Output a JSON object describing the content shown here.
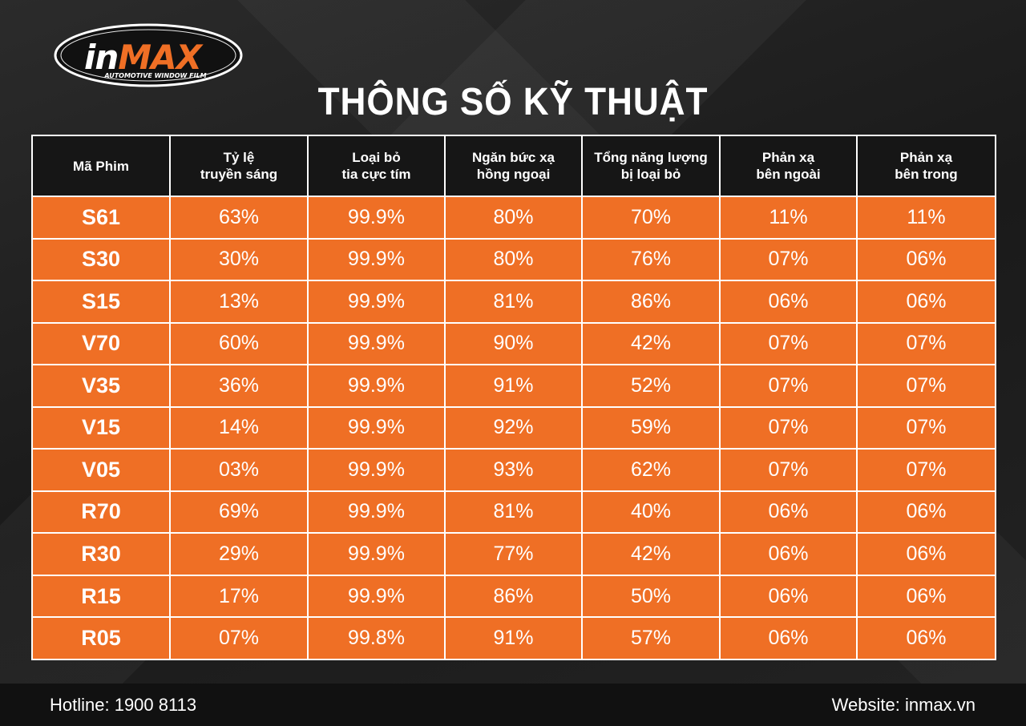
{
  "logo": {
    "brand": "inMAX",
    "tagline": "AUTOMOTIVE WINDOW FILM"
  },
  "title": "THÔNG SỐ KỸ THUẬT",
  "table": {
    "headers": [
      "Mã Phim",
      "Tỷ lệ\ntruyền sáng",
      "Loại bỏ\ntia cực tím",
      "Ngăn bức xạ\nhồng ngoại",
      "Tổng năng lượng\nbị loại bỏ",
      "Phản xạ\nbên ngoài",
      "Phản xạ\nbên trong"
    ],
    "rows": [
      [
        "S61",
        "63%",
        "99.9%",
        "80%",
        "70%",
        "11%",
        "11%"
      ],
      [
        "S30",
        "30%",
        "99.9%",
        "80%",
        "76%",
        "07%",
        "06%"
      ],
      [
        "S15",
        "13%",
        "99.9%",
        "81%",
        "86%",
        "06%",
        "06%"
      ],
      [
        "V70",
        "60%",
        "99.9%",
        "90%",
        "42%",
        "07%",
        "07%"
      ],
      [
        "V35",
        "36%",
        "99.9%",
        "91%",
        "52%",
        "07%",
        "07%"
      ],
      [
        "V15",
        "14%",
        "99.9%",
        "92%",
        "59%",
        "07%",
        "07%"
      ],
      [
        "V05",
        "03%",
        "99.9%",
        "93%",
        "62%",
        "07%",
        "07%"
      ],
      [
        "R70",
        "69%",
        "99.9%",
        "81%",
        "40%",
        "06%",
        "06%"
      ],
      [
        "R30",
        "29%",
        "99.9%",
        "77%",
        "42%",
        "06%",
        "06%"
      ],
      [
        "R15",
        "17%",
        "99.9%",
        "86%",
        "50%",
        "06%",
        "06%"
      ],
      [
        "R05",
        "07%",
        "99.8%",
        "91%",
        "57%",
        "06%",
        "06%"
      ]
    ]
  },
  "footer": {
    "hotline": "Hotline: 1900 8113",
    "website": "Website: inmax.vn"
  },
  "colors": {
    "accent": "#ef6f25",
    "header_bg": "#161616",
    "background": "#1b1b1b",
    "text": "#ffffff"
  }
}
